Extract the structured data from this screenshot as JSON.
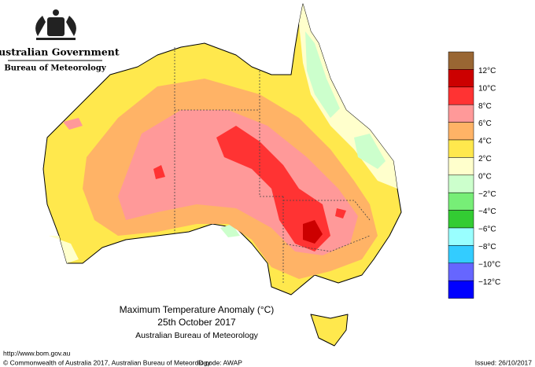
{
  "header": {
    "government": "Australian Government",
    "bureau": "Bureau of Meteorology"
  },
  "legend": {
    "colors": [
      "#996633",
      "#cc0000",
      "#ff3333",
      "#ff9999",
      "#ffb366",
      "#ffe84d",
      "#ffffcc",
      "#ccffcc",
      "#77ee77",
      "#33cc33",
      "#99ffff",
      "#33ccff",
      "#6666ff",
      "#0000ff"
    ],
    "labels": [
      "12°C",
      "10°C",
      "8°C",
      "6°C",
      "4°C",
      "2°C",
      "0°C",
      "−2°C",
      "−4°C",
      "−6°C",
      "−8°C",
      "−10°C",
      "−12°C"
    ]
  },
  "caption": {
    "title": "Maximum Temperature Anomaly (°C)",
    "date": "25th October 2017",
    "source": "Australian Bureau of Meteorology"
  },
  "footer": {
    "url": "http://www.bom.gov.au",
    "copyright": "© Commonwealth of Australia 2017, Australian Bureau of Meteorology",
    "id_code": "ID code: AWAP",
    "issued": "Issued: 26/10/2017"
  }
}
